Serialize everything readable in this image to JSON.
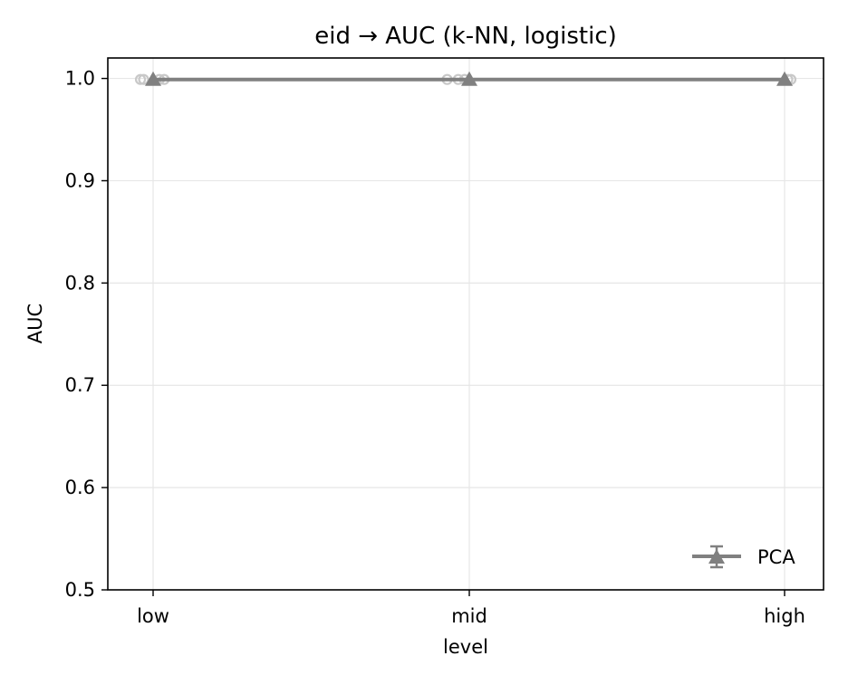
{
  "chart_data": {
    "type": "line",
    "title": "eid → AUC (k-NN, logistic)",
    "xlabel": "level",
    "ylabel": "AUC",
    "categories": [
      "low",
      "mid",
      "high"
    ],
    "ylim": [
      0.5,
      1.02
    ],
    "yticks": [
      0.5,
      0.6,
      0.7,
      0.8,
      0.9,
      1.0
    ],
    "ytick_labels": [
      "0.5",
      "0.6",
      "0.7",
      "0.8",
      "0.9",
      "1.0"
    ],
    "grid": true,
    "legend_position": "lower-right",
    "series": [
      {
        "name": "PCA",
        "marker": "triangle",
        "color": "#808080",
        "values": [
          0.999,
          0.999,
          0.999
        ],
        "errors": [
          0.0005,
          0.0005,
          0.0005
        ]
      }
    ],
    "raw_points": {
      "color": "#c8c8c8",
      "points": [
        {
          "category": "low",
          "offset": -0.04,
          "value": 0.999
        },
        {
          "category": "low",
          "offset": -0.03,
          "value": 0.999
        },
        {
          "category": "low",
          "offset": 0.02,
          "value": 0.999
        },
        {
          "category": "low",
          "offset": 0.035,
          "value": 0.999
        },
        {
          "category": "mid",
          "offset": -0.07,
          "value": 0.999
        },
        {
          "category": "mid",
          "offset": -0.035,
          "value": 0.999
        },
        {
          "category": "mid",
          "offset": -0.015,
          "value": 0.999
        },
        {
          "category": "high",
          "offset": 0.01,
          "value": 0.999
        },
        {
          "category": "high",
          "offset": 0.02,
          "value": 0.999
        }
      ]
    }
  }
}
